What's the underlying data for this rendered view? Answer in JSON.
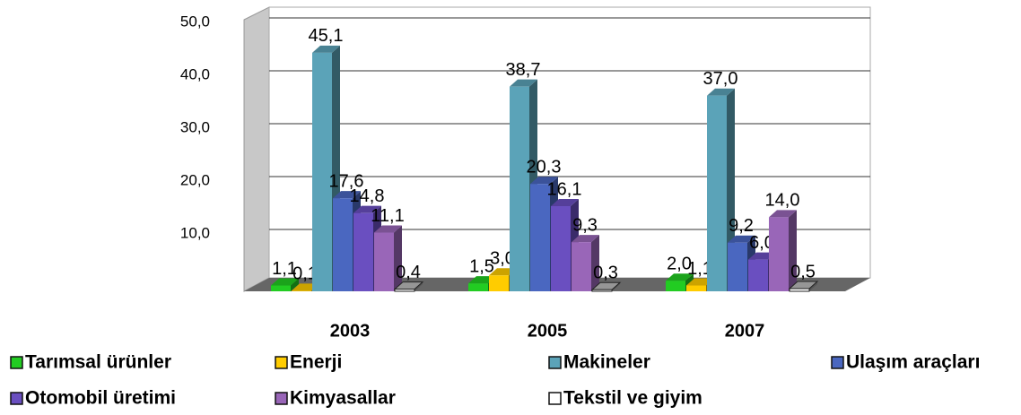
{
  "chart_data": {
    "type": "bar3d",
    "categories": [
      "2003",
      "2005",
      "2007"
    ],
    "series": [
      {
        "name": "Tarımsal ürünler",
        "color": "#22cc22",
        "values": [
          1.1,
          1.5,
          2.0
        ],
        "value_labels": [
          "1,1",
          "1,5",
          "2,0"
        ]
      },
      {
        "name": "Enerji",
        "color": "#ffcc00",
        "values": [
          0.1,
          3.0,
          1.1
        ],
        "value_labels": [
          "0,1",
          "3,0",
          "1,1"
        ]
      },
      {
        "name": "Makineler",
        "color": "#5ba3b8",
        "values": [
          45.1,
          38.7,
          37.0
        ],
        "value_labels": [
          "45,1",
          "38,7",
          "37,0"
        ]
      },
      {
        "name": "Ulaşım araçları",
        "color": "#4a67c0",
        "values": [
          17.6,
          20.3,
          9.2
        ],
        "value_labels": [
          "17,6",
          "20,3",
          "9,2"
        ]
      },
      {
        "name": "Otomobil üretimi",
        "color": "#6a4fc0",
        "values": [
          14.8,
          16.1,
          6.0
        ],
        "value_labels": [
          "14,8",
          "16,1",
          "6,0"
        ]
      },
      {
        "name": "Kimyasallar",
        "color": "#9966b8",
        "values": [
          11.1,
          9.3,
          14.0
        ],
        "value_labels": [
          "11,1",
          "9,3",
          "14,0"
        ]
      },
      {
        "name": "Tekstil ve giyim",
        "color": "#ffffff",
        "values": [
          0.4,
          0.3,
          0.5
        ],
        "value_labels": [
          "0,4",
          "0,3",
          "0,5"
        ]
      }
    ],
    "ylim": [
      0,
      50
    ],
    "yticks": [
      {
        "value": 10,
        "label": "10,0"
      },
      {
        "value": 20,
        "label": "20,0"
      },
      {
        "value": 30,
        "label": "30,0"
      },
      {
        "value": 40,
        "label": "40,0"
      },
      {
        "value": 50,
        "label": "50,0"
      }
    ],
    "grid": true
  }
}
